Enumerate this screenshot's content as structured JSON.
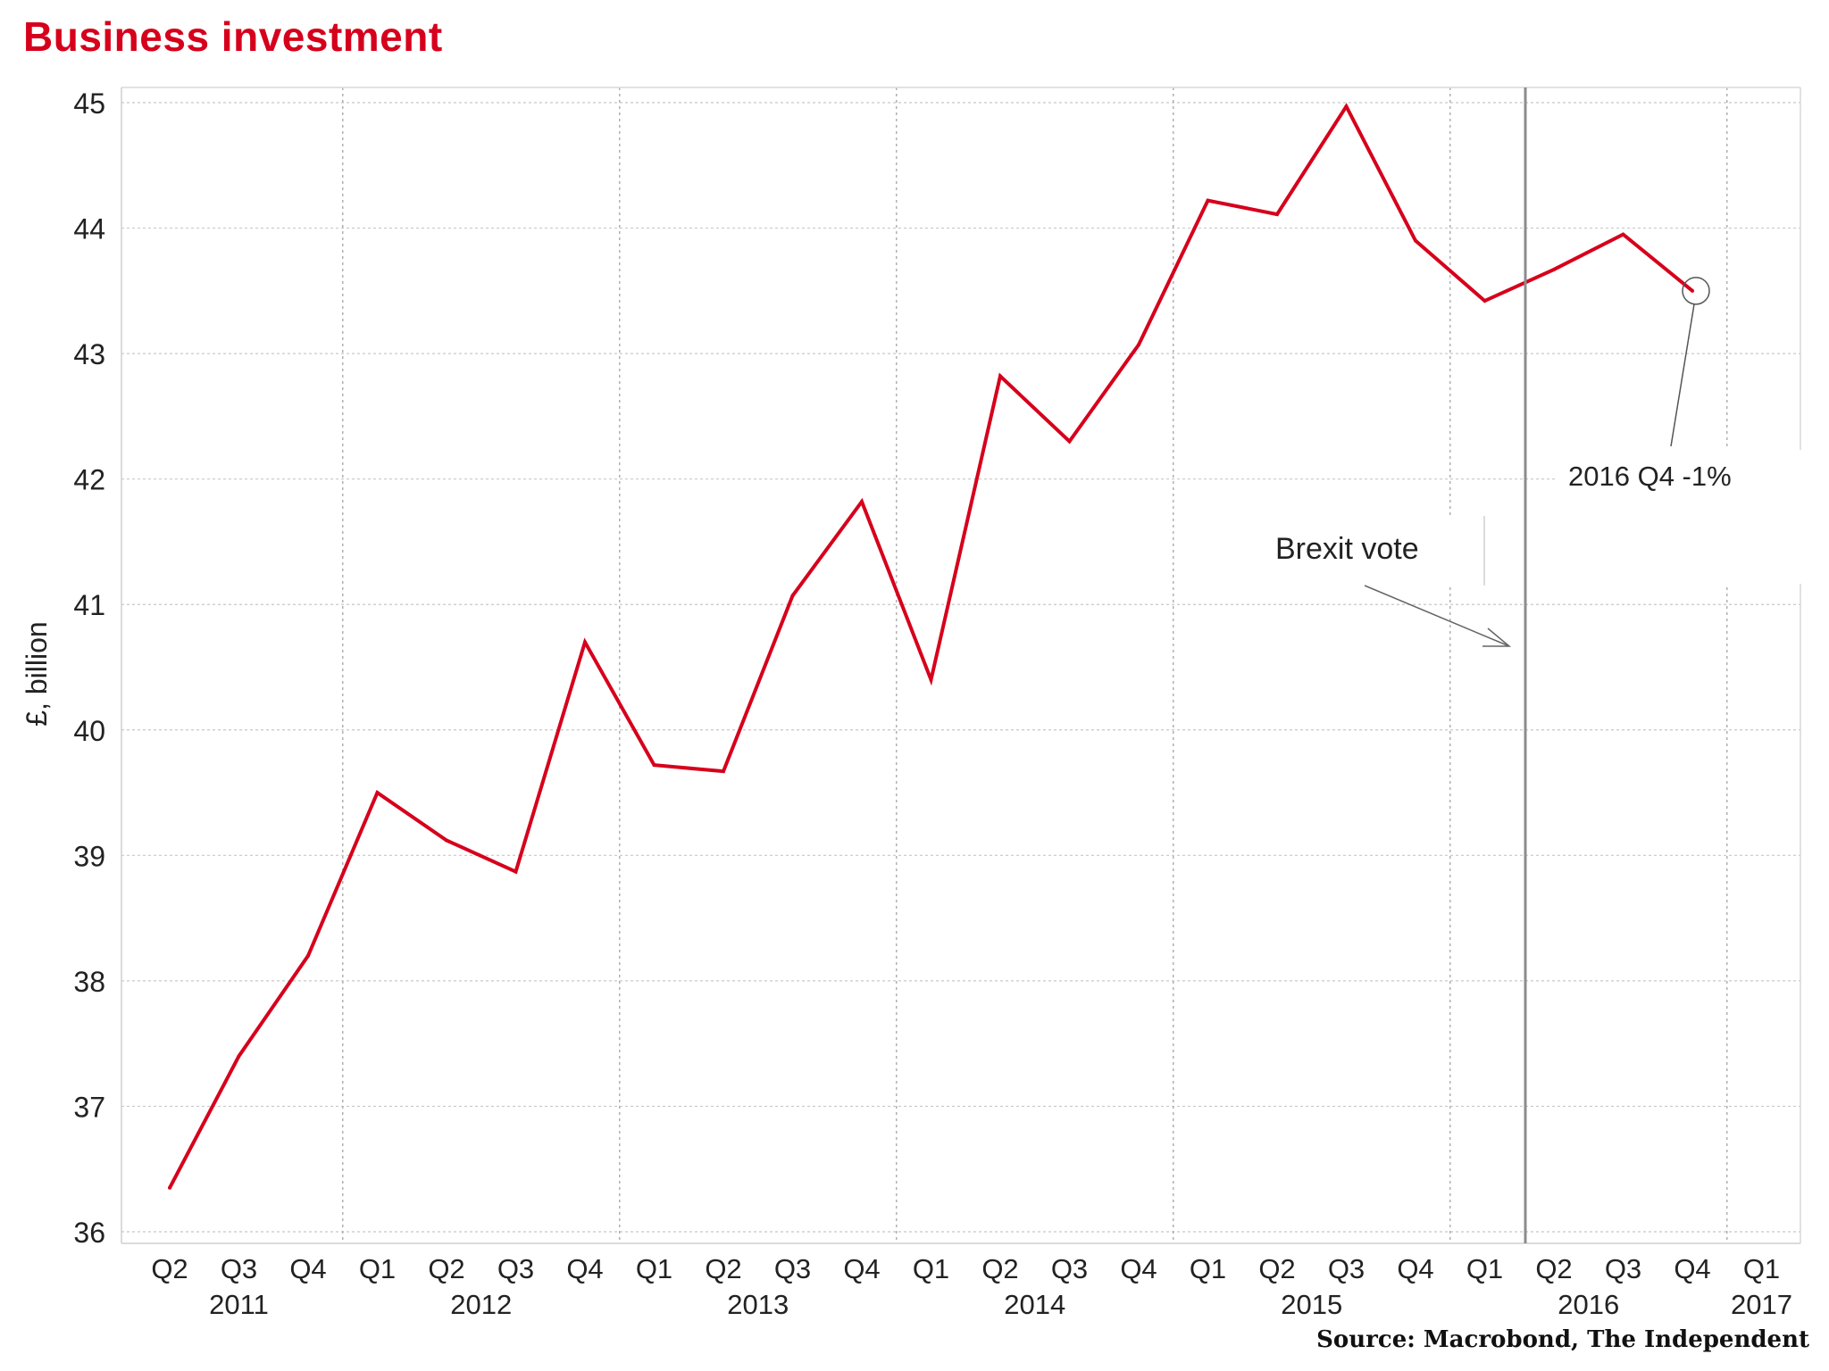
{
  "chart_data": {
    "type": "line",
    "title": "Business investment",
    "ylabel": "£, billion",
    "xlabel": "",
    "source": "Source: Macrobond, The Independent",
    "ylim": [
      36,
      45
    ],
    "yticks": [
      36,
      37,
      38,
      39,
      40,
      41,
      42,
      43,
      44,
      45
    ],
    "quarter_labels": [
      "Q2",
      "Q3",
      "Q4",
      "Q1",
      "Q2",
      "Q3",
      "Q4",
      "Q1",
      "Q2",
      "Q3",
      "Q4",
      "Q1",
      "Q2",
      "Q3",
      "Q4",
      "Q1",
      "Q2",
      "Q3",
      "Q4",
      "Q1",
      "Q2",
      "Q3",
      "Q4",
      "Q1"
    ],
    "year_labels": [
      "2011",
      "2012",
      "2013",
      "2014",
      "2015",
      "2016",
      "2017"
    ],
    "series": [
      {
        "name": "Business investment",
        "color": "#d6001c",
        "x": [
          "2011 Q2",
          "2011 Q3",
          "2011 Q4",
          "2012 Q1",
          "2012 Q2",
          "2012 Q3",
          "2012 Q4",
          "2013 Q1",
          "2013 Q2",
          "2013 Q3",
          "2013 Q4",
          "2014 Q1",
          "2014 Q2",
          "2014 Q3",
          "2014 Q4",
          "2015 Q1",
          "2015 Q2",
          "2015 Q3",
          "2015 Q4",
          "2016 Q1",
          "2016 Q2",
          "2016 Q3",
          "2016 Q4"
        ],
        "values": [
          36.35,
          37.4,
          38.2,
          39.5,
          39.12,
          38.87,
          40.7,
          39.72,
          39.67,
          41.07,
          41.82,
          40.4,
          42.82,
          42.3,
          43.07,
          44.22,
          44.11,
          44.97,
          43.9,
          43.42,
          43.67,
          43.95,
          43.5
        ]
      }
    ],
    "annotations": [
      {
        "text": "2016 Q4  -1%",
        "target": "2016 Q4",
        "value": 43.5
      },
      {
        "text": "Brexit vote",
        "target": "2016 Q2"
      }
    ],
    "grid": true
  }
}
